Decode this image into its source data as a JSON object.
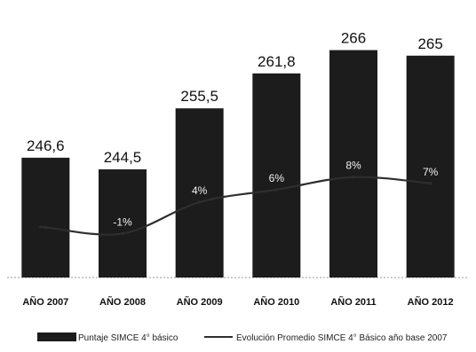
{
  "colors": {
    "bar": "#1c1c1c",
    "line": "#2e2e2e",
    "pct_text": "#f2f2f2",
    "text": "#111111"
  },
  "chart_data": {
    "type": "bar",
    "title": "",
    "xlabel": "",
    "ylabel": "",
    "categories": [
      "AÑO 2007",
      "AÑO 2008",
      "AÑO 2009",
      "AÑO 2010",
      "AÑO 2011",
      "AÑO 2012"
    ],
    "series": [
      {
        "name": "Puntaje SIMCE 4° básico",
        "type": "bar",
        "values": [
          246.6,
          244.5,
          255.5,
          261.8,
          266,
          265
        ],
        "value_labels": [
          "246,6",
          "244,5",
          "255,5",
          "261,8",
          "266",
          "265"
        ]
      },
      {
        "name": "Evolución Promedio SIMCE 4° Básico año base 2007",
        "type": "line",
        "values": [
          0,
          -1,
          4,
          6,
          8,
          7
        ],
        "value_labels": [
          "",
          "-1%",
          "4%",
          "6%",
          "8%",
          "7%"
        ]
      }
    ],
    "bar_ylim": [
      225,
      268
    ],
    "line_ylim": [
      -8,
      30
    ],
    "grid": false,
    "legend_position": "bottom"
  }
}
